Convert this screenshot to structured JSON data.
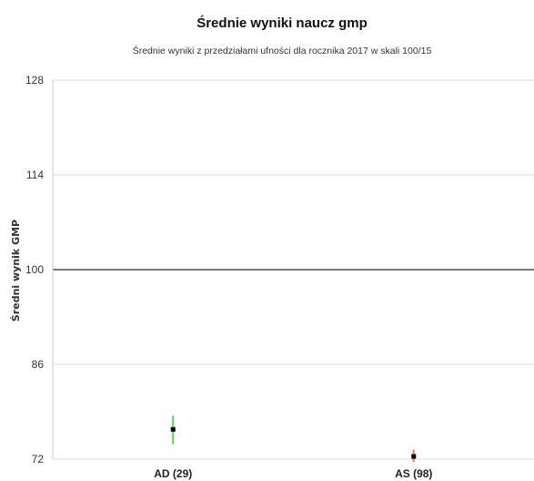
{
  "chart_data": {
    "type": "scatter",
    "title": "Średnie wyniki naucz gmp",
    "subtitle": "Średnie wyniki z przedziałami ufności dla rocznika 2017 w skali 100/15",
    "xlabel": "",
    "ylabel": "Średni wynik GMP",
    "ylim": [
      72,
      128
    ],
    "yticks": [
      "72",
      "86",
      "100",
      "114",
      "128"
    ],
    "reference_line": 100,
    "grid": true,
    "categories": [
      "AD (29)",
      "AS (98)"
    ],
    "series": [
      {
        "values": [
          76.4,
          72.4
        ],
        "ci_low": [
          74.2,
          71.6
        ],
        "ci_high": [
          78.4,
          73.4
        ],
        "ci_colors": [
          "#4cd94c",
          "#f07828"
        ]
      }
    ]
  }
}
